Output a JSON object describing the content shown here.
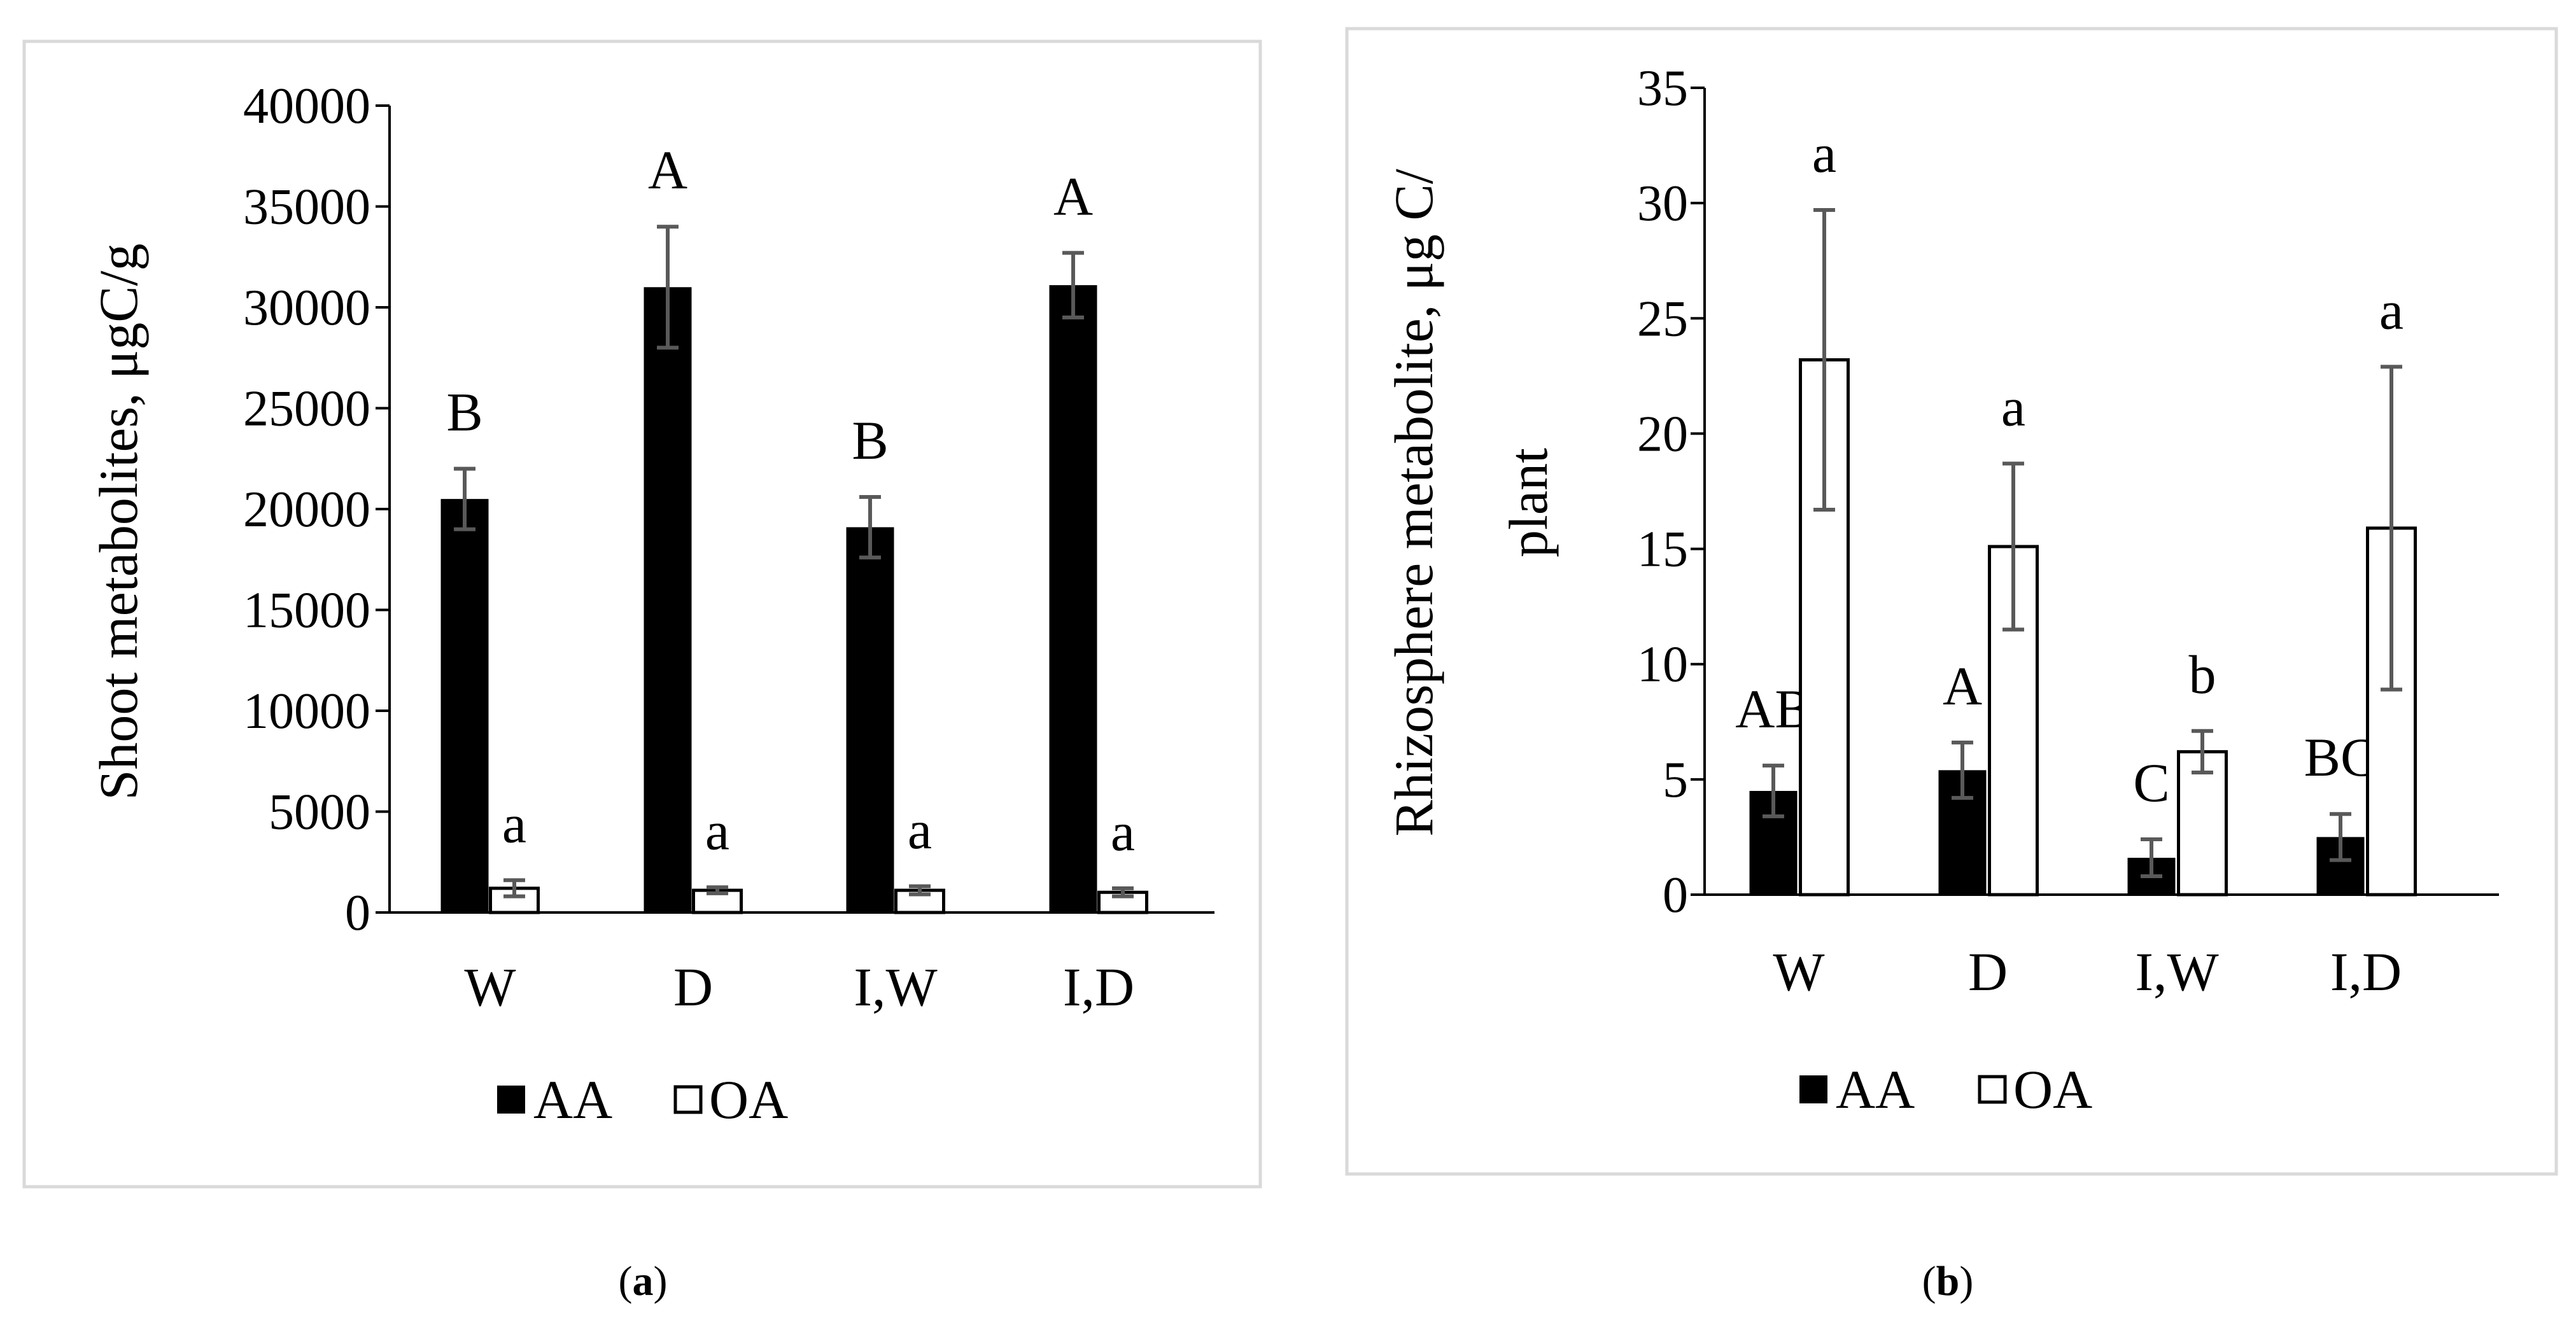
{
  "colors": {
    "aa_fill": "#000000",
    "oa_fill": "#ffffff",
    "errorbar": "#595959",
    "frame": "#d9d9d9"
  },
  "chart_data": [
    {
      "type": "bar",
      "panel_label": "a",
      "title": "",
      "xlabel": "",
      "ylabel": "Shoot metabolites, μgC/g",
      "ylim": [
        0,
        40000
      ],
      "yticks": [
        0,
        5000,
        10000,
        15000,
        20000,
        25000,
        30000,
        35000,
        40000
      ],
      "categories": [
        "W",
        "D",
        "I,W",
        "I,D"
      ],
      "series": [
        {
          "name": "AA",
          "values": [
            20500,
            31000,
            19100,
            31100
          ],
          "errors": [
            1500,
            3000,
            1500,
            1600
          ],
          "letters": [
            "B",
            "A",
            "B",
            "A"
          ]
        },
        {
          "name": "OA",
          "values": [
            1200,
            1100,
            1100,
            1000
          ],
          "errors": [
            400,
            150,
            200,
            200
          ],
          "letters": [
            "a",
            "a",
            "a",
            "a"
          ]
        }
      ],
      "legend": {
        "placement": "bottom",
        "entries": [
          "AA",
          "OA"
        ]
      }
    },
    {
      "type": "bar",
      "panel_label": "b",
      "title": "",
      "xlabel": "",
      "ylabel_lines": [
        "Rhizosphere  metabolite, μg C/",
        "plant"
      ],
      "ylim": [
        0,
        35
      ],
      "yticks": [
        0,
        5,
        10,
        15,
        20,
        25,
        30,
        35
      ],
      "categories": [
        "W",
        "D",
        "I,W",
        "I,D"
      ],
      "series": [
        {
          "name": "AA",
          "values": [
            4.5,
            5.4,
            1.6,
            2.5
          ],
          "errors": [
            1.1,
            1.2,
            0.8,
            1.0
          ],
          "letters": [
            "AB",
            "A",
            "C",
            "BC"
          ]
        },
        {
          "name": "OA",
          "values": [
            23.2,
            15.1,
            6.2,
            15.9
          ],
          "errors": [
            6.5,
            3.6,
            0.9,
            7.0
          ],
          "letters": [
            "a",
            "a",
            "b",
            "a"
          ]
        }
      ],
      "legend": {
        "placement": "bottom",
        "entries": [
          "AA",
          "OA"
        ]
      }
    }
  ]
}
